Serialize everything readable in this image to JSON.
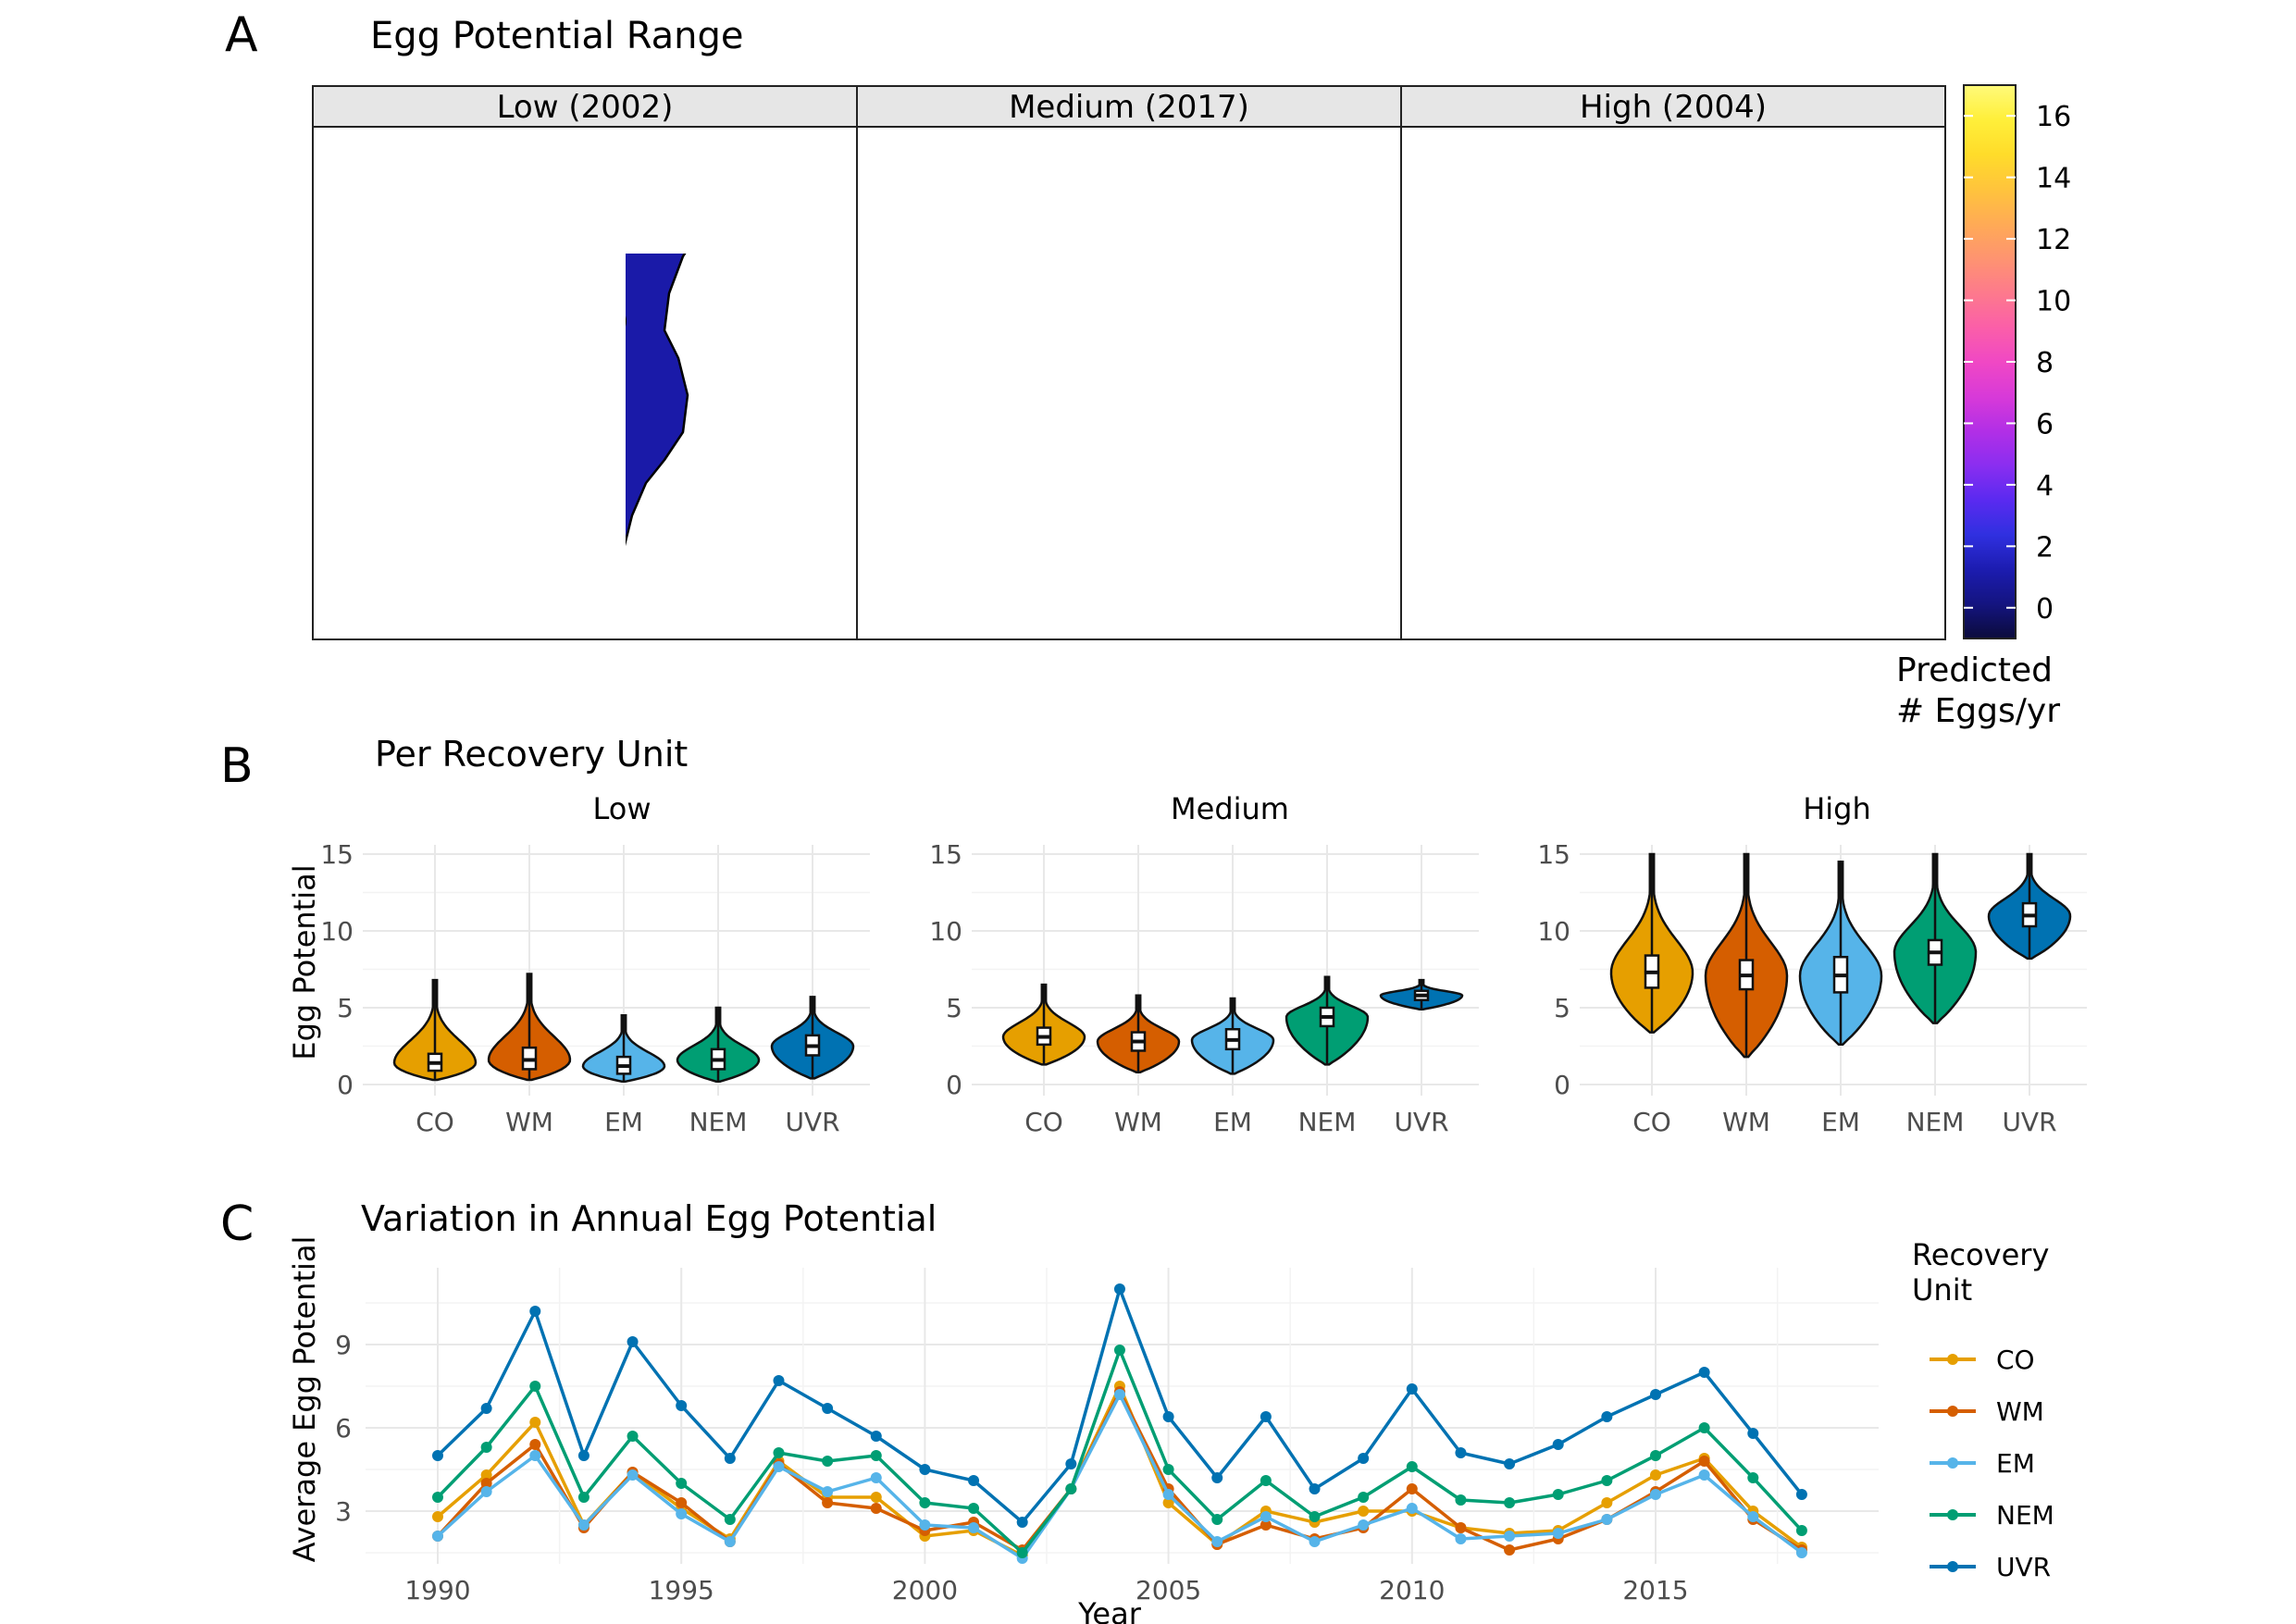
{
  "panels": {
    "a": {
      "letter": "A",
      "title": "Egg Potential Range",
      "facets": [
        "Low (2002)",
        "Medium (2017)",
        "High (2004)"
      ],
      "legend_title": [
        "Predicted",
        "# Eggs/yr"
      ],
      "legend_ticks": [
        "0",
        "2",
        "4",
        "6",
        "8",
        "10",
        "12",
        "14",
        "16"
      ]
    },
    "b": {
      "letter": "B",
      "title": "Per Recovery Unit",
      "ylabel": "Egg Potential",
      "facets": [
        "Low",
        "Medium",
        "High"
      ],
      "categories": [
        "CO",
        "WM",
        "EM",
        "NEM",
        "UVR"
      ],
      "yticks": [
        "0",
        "5",
        "10",
        "15"
      ]
    },
    "c": {
      "letter": "C",
      "title": "Variation in Annual Egg Potential",
      "xlabel": "Year",
      "ylabel": "Average Egg Potential",
      "xticks": [
        "1990",
        "1995",
        "2000",
        "2005",
        "2010",
        "2015"
      ],
      "yticks": [
        "3",
        "6",
        "9"
      ],
      "legend_title": [
        "Recovery",
        "Unit"
      ]
    }
  },
  "chart_data": [
    {
      "type": "heatmap",
      "title": "Egg Potential Range",
      "facets": [
        "Low (2002)",
        "Medium (2017)",
        "High (2004)"
      ],
      "colorbar": {
        "title": "Predicted # Eggs/yr",
        "range": [
          -1,
          17
        ],
        "ticks": [
          0,
          2,
          4,
          6,
          8,
          10,
          12,
          14,
          16
        ],
        "colors": [
          "#0b0b3b",
          "#141480",
          "#1c1cb0",
          "#3030e0",
          "#5a2af0",
          "#8a2ef0",
          "#b22fe6",
          "#d83ad8",
          "#f048c4",
          "#fb5fa8",
          "#fd7a8c",
          "#fe9470",
          "#ffab55",
          "#ffc43c",
          "#ffdc2a",
          "#ffef3a",
          "#fffa7a"
        ]
      },
      "facet_fill": [
        "#1a1aa8",
        "#2a2ae0",
        "#d84ad8"
      ]
    },
    {
      "type": "violin",
      "title": "Per Recovery Unit",
      "ylabel": "Egg Potential",
      "ylim": [
        0,
        15
      ],
      "facets": [
        "Low",
        "Medium",
        "High"
      ],
      "categories": [
        "CO",
        "WM",
        "EM",
        "NEM",
        "UVR"
      ],
      "colors": {
        "CO": "#e69f00",
        "WM": "#d55e00",
        "EM": "#56b4e9",
        "NEM": "#009e73",
        "UVR": "#0072b2"
      },
      "groups": [
        {
          "facet": "Low",
          "category": "CO",
          "min": 0.3,
          "q1": 0.9,
          "median": 1.4,
          "q3": 2.0,
          "max": 6.8
        },
        {
          "facet": "Low",
          "category": "WM",
          "min": 0.3,
          "q1": 1.0,
          "median": 1.6,
          "q3": 2.4,
          "max": 7.2
        },
        {
          "facet": "Low",
          "category": "EM",
          "min": 0.2,
          "q1": 0.7,
          "median": 1.2,
          "q3": 1.8,
          "max": 4.5
        },
        {
          "facet": "Low",
          "category": "NEM",
          "min": 0.2,
          "q1": 1.0,
          "median": 1.6,
          "q3": 2.3,
          "max": 5.0
        },
        {
          "facet": "Low",
          "category": "UVR",
          "min": 0.4,
          "q1": 1.9,
          "median": 2.5,
          "q3": 3.2,
          "max": 5.7
        },
        {
          "facet": "Medium",
          "category": "CO",
          "min": 1.3,
          "q1": 2.6,
          "median": 3.1,
          "q3": 3.7,
          "max": 6.5
        },
        {
          "facet": "Medium",
          "category": "WM",
          "min": 0.8,
          "q1": 2.2,
          "median": 2.8,
          "q3": 3.4,
          "max": 5.8
        },
        {
          "facet": "Medium",
          "category": "EM",
          "min": 0.7,
          "q1": 2.3,
          "median": 2.9,
          "q3": 3.6,
          "max": 5.6
        },
        {
          "facet": "Medium",
          "category": "NEM",
          "min": 1.3,
          "q1": 3.8,
          "median": 4.4,
          "q3": 5.0,
          "max": 7.0
        },
        {
          "facet": "Medium",
          "category": "UVR",
          "min": 4.9,
          "q1": 5.5,
          "median": 5.8,
          "q3": 6.1,
          "max": 6.8
        },
        {
          "facet": "High",
          "category": "CO",
          "min": 3.4,
          "q1": 6.3,
          "median": 7.3,
          "q3": 8.4,
          "max": 15.0
        },
        {
          "facet": "High",
          "category": "WM",
          "min": 1.8,
          "q1": 6.2,
          "median": 7.1,
          "q3": 8.1,
          "max": 15.0
        },
        {
          "facet": "High",
          "category": "EM",
          "min": 2.6,
          "q1": 6.0,
          "median": 7.1,
          "q3": 8.3,
          "max": 14.5
        },
        {
          "facet": "High",
          "category": "NEM",
          "min": 4.0,
          "q1": 7.8,
          "median": 8.6,
          "q3": 9.4,
          "max": 15.0
        },
        {
          "facet": "High",
          "category": "UVR",
          "min": 8.2,
          "q1": 10.3,
          "median": 11.0,
          "q3": 11.8,
          "max": 15.0
        }
      ]
    },
    {
      "type": "line",
      "title": "Variation in Annual Egg Potential",
      "xlabel": "Year",
      "ylabel": "Average Egg Potential",
      "xlim": [
        1989.9,
        1990.0
      ],
      "x": [
        1990,
        1991,
        1992,
        1993,
        1994,
        1995,
        1996,
        1997,
        1998,
        1999,
        2000,
        2001,
        2002,
        2003,
        2004,
        2005,
        2006,
        2007,
        2008,
        2009,
        2010,
        2011,
        2012,
        2013,
        2014,
        2015,
        2016,
        2017,
        2018
      ],
      "legend": "right",
      "series": [
        {
          "name": "CO",
          "color": "#e69f00",
          "values": [
            2.8,
            4.3,
            6.2,
            2.5,
            4.4,
            3.1,
            2.0,
            4.8,
            3.5,
            3.5,
            2.1,
            2.3,
            1.4,
            3.8,
            7.5,
            3.3,
            1.8,
            3.0,
            2.6,
            3.0,
            3.0,
            2.4,
            2.2,
            2.3,
            3.3,
            4.3,
            4.9,
            3.0,
            1.7
          ]
        },
        {
          "name": "WM",
          "color": "#d55e00",
          "values": [
            2.1,
            4.0,
            5.4,
            2.4,
            4.4,
            3.3,
            1.9,
            4.7,
            3.3,
            3.1,
            2.3,
            2.6,
            1.6,
            3.8,
            7.3,
            3.8,
            1.8,
            2.5,
            2.0,
            2.4,
            3.8,
            2.4,
            1.6,
            2.0,
            2.7,
            3.7,
            4.8,
            2.7,
            1.6
          ]
        },
        {
          "name": "EM",
          "color": "#56b4e9",
          "values": [
            2.1,
            3.7,
            5.0,
            2.5,
            4.3,
            2.9,
            1.9,
            4.6,
            3.7,
            4.2,
            2.5,
            2.4,
            1.3,
            3.8,
            7.2,
            3.6,
            1.9,
            2.8,
            1.9,
            2.5,
            3.1,
            2.0,
            2.1,
            2.2,
            2.7,
            3.6,
            4.3,
            2.8,
            1.5
          ]
        },
        {
          "name": "NEM",
          "color": "#009e73",
          "values": [
            3.5,
            5.3,
            7.5,
            3.5,
            5.7,
            4.0,
            2.7,
            5.1,
            4.8,
            5.0,
            3.3,
            3.1,
            1.5,
            3.8,
            8.8,
            4.5,
            2.7,
            4.1,
            2.8,
            3.5,
            4.6,
            3.4,
            3.3,
            3.6,
            4.1,
            5.0,
            6.0,
            4.2,
            2.3
          ]
        },
        {
          "name": "UVR",
          "color": "#0072b2",
          "values": [
            5.0,
            6.7,
            10.2,
            5.0,
            9.1,
            6.8,
            4.9,
            7.7,
            6.7,
            5.7,
            4.5,
            4.1,
            2.6,
            4.7,
            11.0,
            6.4,
            4.2,
            6.4,
            3.8,
            4.9,
            7.4,
            5.1,
            4.7,
            5.4,
            6.4,
            7.2,
            8.0,
            5.8,
            3.6
          ]
        }
      ]
    }
  ]
}
